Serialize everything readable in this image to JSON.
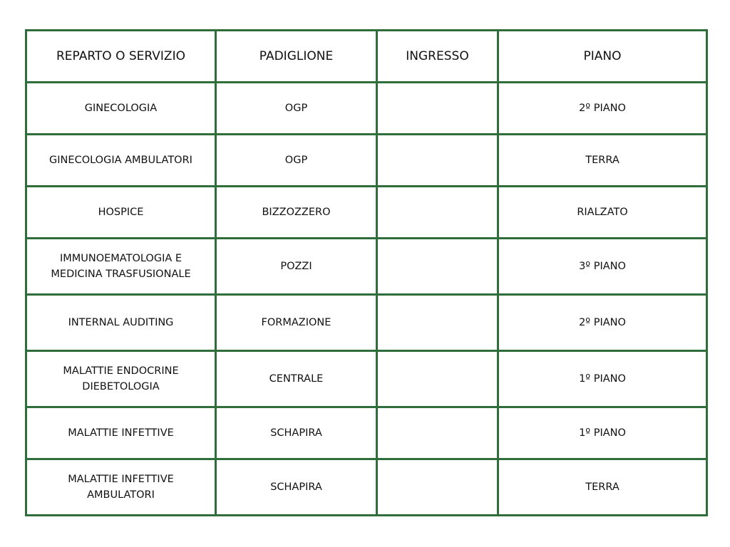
{
  "colors": {
    "border": "#2f6d3b",
    "text": "#111111"
  },
  "table": {
    "headers": [
      "REPARTO O SERVIZIO",
      "PADIGLIONE",
      "INGRESSO",
      "PIANO"
    ],
    "rows": [
      {
        "reparto": "GINECOLOGIA",
        "padiglione": "OGP",
        "ingresso": "",
        "piano": "2º PIANO",
        "tall": false
      },
      {
        "reparto": "GINECOLOGIA AMBULATORI",
        "padiglione": "OGP",
        "ingresso": "",
        "piano": "TERRA",
        "tall": false
      },
      {
        "reparto": "HOSPICE",
        "padiglione": "BIZZOZZERO",
        "ingresso": "",
        "piano": "RIALZATO",
        "tall": false
      },
      {
        "reparto": "IMMUNOEMATOLOGIA E MEDICINA TRASFUSIONALE",
        "padiglione": "POZZI",
        "ingresso": "",
        "piano": "3º PIANO",
        "tall": true
      },
      {
        "reparto": "INTERNAL AUDITING",
        "padiglione": "FORMAZIONE",
        "ingresso": "",
        "piano": "2º PIANO",
        "tall": true
      },
      {
        "reparto": "MALATTIE ENDOCRINE DIEBETOLOGIA",
        "padiglione": "CENTRALE",
        "ingresso": "",
        "piano": "1º PIANO",
        "tall": true
      },
      {
        "reparto": "MALATTIE INFETTIVE",
        "padiglione": "SCHAPIRA",
        "ingresso": "",
        "piano": "1º PIANO",
        "tall": false
      },
      {
        "reparto": "MALATTIE INFETTIVE AMBULATORI",
        "padiglione": "SCHAPIRA",
        "ingresso": "",
        "piano": "TERRA",
        "tall": true
      }
    ]
  }
}
